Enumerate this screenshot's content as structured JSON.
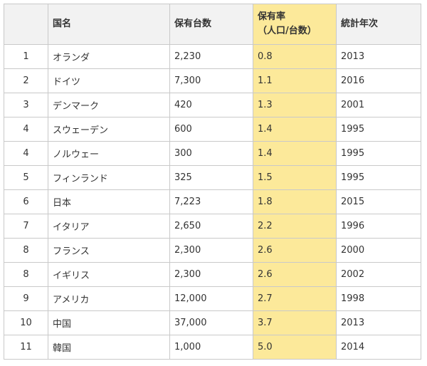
{
  "table": {
    "headers": {
      "rank": "",
      "country": "国名",
      "count": "保有台数",
      "rate_line1": "保有率",
      "rate_line2": "（人口/台数）",
      "year": "統計年次"
    },
    "rows": [
      {
        "rank": "1",
        "country": "オランダ",
        "count": "2,230",
        "rate": "0.8",
        "year": "2013"
      },
      {
        "rank": "2",
        "country": "ドイツ",
        "count": "7,300",
        "rate": "1.1",
        "year": "2016"
      },
      {
        "rank": "3",
        "country": "デンマーク",
        "count": "420",
        "rate": "1.3",
        "year": "2001"
      },
      {
        "rank": "4",
        "country": "スウェーデン",
        "count": "600",
        "rate": "1.4",
        "year": "1995"
      },
      {
        "rank": "4",
        "country": "ノルウェー",
        "count": "300",
        "rate": "1.4",
        "year": "1995"
      },
      {
        "rank": "5",
        "country": "フィンランド",
        "count": "325",
        "rate": "1.5",
        "year": "1995"
      },
      {
        "rank": "6",
        "country": "日本",
        "count": "7,223",
        "rate": "1.8",
        "year": "2015"
      },
      {
        "rank": "7",
        "country": "イタリア",
        "count": "2,650",
        "rate": "2.2",
        "year": "1996"
      },
      {
        "rank": "8",
        "country": "フランス",
        "count": "2,300",
        "rate": "2.6",
        "year": "2000"
      },
      {
        "rank": "8",
        "country": "イギリス",
        "count": "2,300",
        "rate": "2.6",
        "year": "2002"
      },
      {
        "rank": "9",
        "country": "アメリカ",
        "count": "12,000",
        "rate": "2.7",
        "year": "1998"
      },
      {
        "rank": "10",
        "country": "中国",
        "count": "37,000",
        "rate": "3.7",
        "year": "2013"
      },
      {
        "rank": "11",
        "country": "韓国",
        "count": "1,000",
        "rate": "5.0",
        "year": "2014"
      }
    ]
  },
  "colors": {
    "highlight": "#fce99a",
    "header_bg": "#f2f2f2",
    "border": "#c9c9c9"
  }
}
